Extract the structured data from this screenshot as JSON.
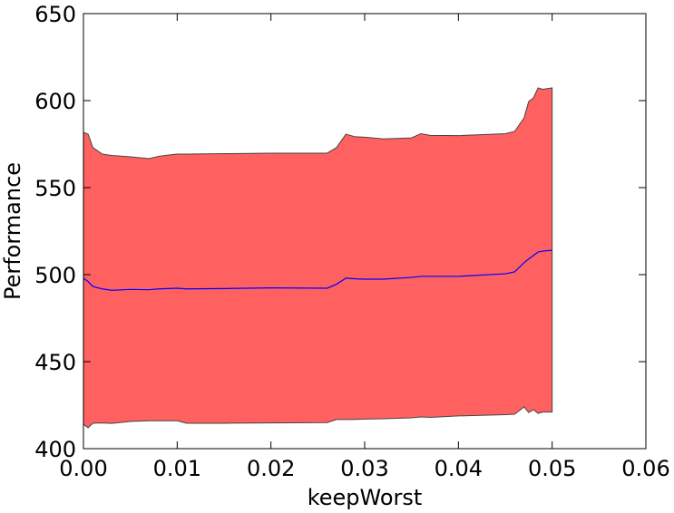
{
  "chart_data": {
    "type": "line",
    "xlabel": "keepWorst",
    "ylabel": "Performance",
    "x": [
      0,
      0.0005,
      0.001,
      0.002,
      0.003,
      0.005,
      0.007,
      0.008,
      0.009,
      0.01,
      0.011,
      0.015,
      0.02,
      0.026,
      0.027,
      0.028,
      0.029,
      0.03,
      0.032,
      0.035,
      0.036,
      0.037,
      0.04,
      0.045,
      0.046,
      0.047,
      0.0475,
      0.048,
      0.0485,
      0.049,
      0.05
    ],
    "series": [
      {
        "color": "#0000ff",
        "values": [
          498,
          496,
          493.2,
          491.8,
          491,
          491.5,
          491.3,
          491.8,
          492,
          492.2,
          491.8,
          492,
          492.4,
          492.2,
          494.5,
          498,
          497.6,
          497.4,
          497.4,
          498.4,
          499,
          499,
          499,
          500.5,
          501.6,
          506.8,
          509,
          511,
          513,
          513.5,
          514
        ]
      }
    ],
    "band": {
      "color": "#ff6161",
      "edge_color": "#444444",
      "upper": [
        581.8,
        580.7,
        573,
        569.3,
        568.5,
        567.7,
        566.7,
        568,
        568.7,
        569.3,
        569.3,
        569.5,
        569.8,
        569.8,
        573,
        580.7,
        579.2,
        579,
        578,
        578.6,
        581,
        580,
        579.9,
        581,
        582.3,
        590,
        599.5,
        601.5,
        607.3,
        606.5,
        607.3
      ],
      "lower": [
        414,
        412,
        414.6,
        414.8,
        414.5,
        415.6,
        416,
        416,
        416,
        416,
        414.6,
        414.6,
        414.8,
        415,
        416.7,
        416.7,
        416.8,
        417,
        417.2,
        417.7,
        418.2,
        418,
        418.8,
        419.5,
        419.8,
        424,
        420.8,
        422.4,
        420.3,
        421,
        421
      ]
    },
    "xlim": [
      0,
      0.06
    ],
    "ylim": [
      400,
      650
    ],
    "xticks": [
      {
        "value": 0,
        "label": "0.00"
      },
      {
        "value": 0.01,
        "label": "0.01"
      },
      {
        "value": 0.02,
        "label": "0.02"
      },
      {
        "value": 0.03,
        "label": "0.03"
      },
      {
        "value": 0.04,
        "label": "0.04"
      },
      {
        "value": 0.05,
        "label": "0.05"
      },
      {
        "value": 0.06,
        "label": "0.06"
      }
    ],
    "yticks": [
      400,
      450,
      500,
      550,
      600,
      650
    ]
  }
}
